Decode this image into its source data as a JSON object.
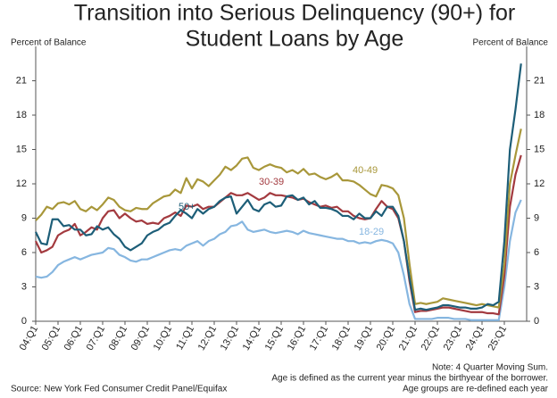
{
  "chart_data": {
    "type": "line",
    "title": [
      "Transition into Serious Delinquency (90+) for",
      "Student Loans by Age"
    ],
    "ylabel": "Percent of Balance",
    "y2label": "Percent of Balance",
    "notes": [
      "Note: 4 Quarter Moving Sum.",
      "Age is defined as the current year minus the birthyear of the borrower.",
      "Age groups are re-defined each year"
    ],
    "source": "Source: New York Fed Consumer Credit Panel/Equifax",
    "categories": [
      "04:Q1",
      null,
      null,
      null,
      "05:Q1",
      null,
      null,
      null,
      "06:Q1",
      null,
      null,
      null,
      "07:Q1",
      null,
      null,
      null,
      "08:Q1",
      null,
      null,
      null,
      "09:Q1",
      null,
      null,
      null,
      "10:Q1",
      null,
      null,
      null,
      "11:Q1",
      null,
      null,
      null,
      "12:Q1",
      null,
      null,
      null,
      "13:Q1",
      null,
      null,
      null,
      "14:Q1",
      null,
      null,
      null,
      "15:Q1",
      null,
      null,
      null,
      "16:Q1",
      null,
      null,
      null,
      "17:Q1",
      null,
      null,
      null,
      "18:Q1",
      null,
      null,
      null,
      "19:Q1",
      null,
      null,
      null,
      "20:Q1",
      null,
      null,
      null,
      "21:Q1",
      null,
      null,
      null,
      "22:Q1",
      null,
      null,
      null,
      "23:Q1",
      null,
      null,
      null,
      "24:Q1",
      null,
      null,
      null,
      "25:Q1",
      null,
      null,
      null
    ],
    "ylim": [
      0,
      24
    ],
    "yticks": [
      0,
      3,
      6,
      9,
      12,
      15,
      18,
      21
    ],
    "y2lim": [
      0,
      24
    ],
    "y2ticks": [
      0,
      3,
      6,
      9,
      12,
      15,
      18,
      21
    ],
    "grid": false,
    "series": [
      {
        "name": "40-49",
        "color": "#a8973a",
        "values": [
          8.8,
          9.3,
          10.0,
          9.8,
          10.3,
          10.4,
          10.2,
          10.5,
          9.8,
          9.6,
          10.0,
          9.7,
          10.2,
          10.8,
          10.6,
          10.0,
          9.7,
          9.6,
          9.9,
          9.8,
          9.8,
          10.3,
          10.6,
          10.9,
          11.0,
          11.5,
          11.2,
          12.5,
          11.6,
          12.4,
          12.2,
          11.8,
          12.3,
          12.8,
          13.5,
          13.2,
          13.6,
          14.2,
          14.3,
          13.4,
          13.2,
          13.5,
          13.7,
          13.5,
          13.4,
          13.0,
          13.2,
          12.9,
          13.3,
          12.8,
          12.9,
          12.6,
          12.4,
          12.6,
          12.9,
          12.3,
          12.3,
          12.2,
          11.9,
          11.5,
          11.1,
          10.9,
          11.9,
          11.8,
          11.6,
          11.0,
          9.0,
          5.0,
          1.5,
          1.6,
          1.5,
          1.6,
          1.7,
          2.0,
          1.9,
          1.8,
          1.7,
          1.6,
          1.5,
          1.4,
          1.5,
          1.4,
          1.3,
          1.2,
          5.0,
          12.0,
          14.5,
          16.8
        ]
      },
      {
        "name": "30-39",
        "color": "#a33a3f",
        "values": [
          7.0,
          6.0,
          6.2,
          6.5,
          7.5,
          7.8,
          8.0,
          8.5,
          7.5,
          7.8,
          8.2,
          8.0,
          9.0,
          9.6,
          9.7,
          9.0,
          9.4,
          9.0,
          8.7,
          8.8,
          8.5,
          8.6,
          8.5,
          9.0,
          9.2,
          9.5,
          9.2,
          10.1,
          10.0,
          10.2,
          9.8,
          10.0,
          10.0,
          10.4,
          10.8,
          11.2,
          11.0,
          11.0,
          11.2,
          10.9,
          10.6,
          10.8,
          11.2,
          11.0,
          11.0,
          10.9,
          10.8,
          10.6,
          10.7,
          10.4,
          10.2,
          10.0,
          10.1,
          9.9,
          10.0,
          9.6,
          9.6,
          9.2,
          9.0,
          8.9,
          9.0,
          9.8,
          10.5,
          10.0,
          9.8,
          9.0,
          7.0,
          3.5,
          0.8,
          0.9,
          0.9,
          1.0,
          1.1,
          1.2,
          1.2,
          1.1,
          1.0,
          0.9,
          0.8,
          0.8,
          0.8,
          0.7,
          0.7,
          0.6,
          4.0,
          10.0,
          12.8,
          14.5
        ]
      },
      {
        "name": "50+",
        "color": "#1d5e78",
        "values": [
          7.8,
          6.8,
          6.7,
          8.9,
          8.9,
          8.3,
          8.4,
          8.0,
          8.0,
          7.5,
          7.6,
          8.3,
          8.0,
          8.2,
          7.6,
          7.2,
          6.5,
          6.2,
          6.5,
          6.8,
          7.5,
          7.8,
          8.0,
          8.4,
          8.6,
          9.2,
          9.7,
          9.4,
          9.0,
          9.8,
          9.4,
          9.8,
          10.0,
          10.5,
          10.8,
          10.9,
          9.4,
          10.0,
          10.6,
          9.8,
          9.6,
          10.2,
          10.4,
          10.0,
          10.1,
          10.9,
          11.0,
          10.6,
          10.8,
          10.2,
          10.5,
          9.9,
          9.9,
          9.8,
          9.6,
          9.2,
          9.2,
          8.9,
          9.4,
          9.0,
          9.0,
          9.6,
          9.2,
          10.0,
          10.0,
          9.2,
          7.0,
          3.8,
          1.0,
          1.1,
          1.0,
          1.1,
          1.2,
          1.4,
          1.4,
          1.3,
          1.2,
          1.2,
          1.1,
          1.1,
          1.2,
          1.5,
          1.4,
          1.7,
          7.0,
          15.0,
          18.5,
          22.5
        ]
      },
      {
        "name": "18-29",
        "color": "#86b6e0",
        "values": [
          3.9,
          3.8,
          3.9,
          4.3,
          4.9,
          5.2,
          5.4,
          5.6,
          5.4,
          5.6,
          5.8,
          5.9,
          6.0,
          6.4,
          6.3,
          5.8,
          5.6,
          5.3,
          5.2,
          5.4,
          5.4,
          5.6,
          5.8,
          6.0,
          6.2,
          6.3,
          6.2,
          6.6,
          6.8,
          7.0,
          6.6,
          7.0,
          7.2,
          7.6,
          7.8,
          8.3,
          8.4,
          8.7,
          8.0,
          7.8,
          7.9,
          8.0,
          7.8,
          7.7,
          7.8,
          7.9,
          7.8,
          7.6,
          7.9,
          7.7,
          7.6,
          7.5,
          7.4,
          7.3,
          7.2,
          7.2,
          7.0,
          7.0,
          6.8,
          6.9,
          6.8,
          7.0,
          7.1,
          7.0,
          6.8,
          6.0,
          4.0,
          1.5,
          0.2,
          0.2,
          0.2,
          0.2,
          0.3,
          0.3,
          0.3,
          0.2,
          0.2,
          0.2,
          0.1,
          0.1,
          0.1,
          0.1,
          0.1,
          0.1,
          3.0,
          7.0,
          9.5,
          10.6
        ]
      }
    ]
  }
}
